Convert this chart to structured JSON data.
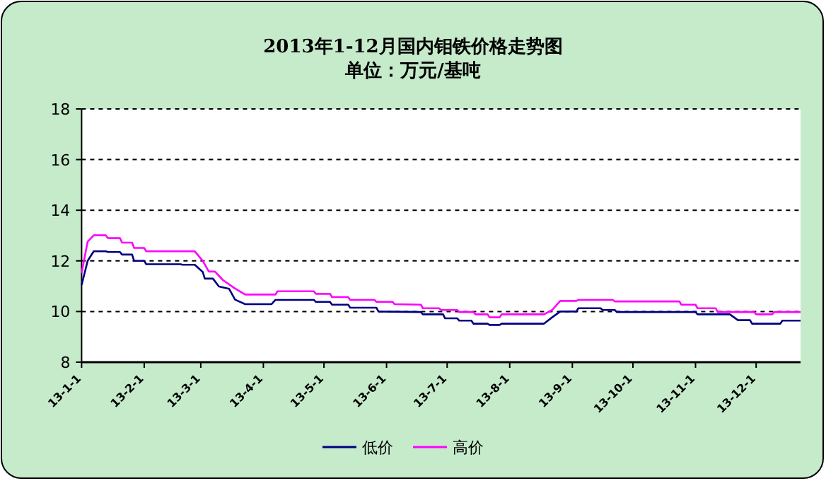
{
  "chart_data": {
    "type": "line",
    "title": "2013年1-12月国内钼铁价格走势图",
    "subtitle": "单位：万元/基吨",
    "grid": "y",
    "legend": "bottom",
    "marker": "none",
    "xlim": [
      "2013-01-01",
      "2013-12-23"
    ],
    "xticks": [
      {
        "value": "2013-01-01",
        "label": "13-1-1"
      },
      {
        "value": "2013-02-01",
        "label": "13-2-1"
      },
      {
        "value": "2013-03-01",
        "label": "13-3-1"
      },
      {
        "value": "2013-04-01",
        "label": "13-4-1"
      },
      {
        "value": "2013-05-01",
        "label": "13-5-1"
      },
      {
        "value": "2013-06-01",
        "label": "13-6-1"
      },
      {
        "value": "2013-07-01",
        "label": "13-7-1"
      },
      {
        "value": "2013-08-01",
        "label": "13-8-1"
      },
      {
        "value": "2013-09-01",
        "label": "13-9-1"
      },
      {
        "value": "2013-10-01",
        "label": "13-10-1"
      },
      {
        "value": "2013-11-01",
        "label": "13-11-1"
      },
      {
        "value": "2013-12-01",
        "label": "13-12-1"
      }
    ],
    "ylim": [
      8,
      18
    ],
    "yticks": [
      8,
      10,
      12,
      14,
      16,
      18
    ],
    "series": [
      {
        "name": "低价",
        "color": "#000080",
        "x": [
          "2013-01-01",
          "2013-01-04",
          "2013-01-07",
          "2013-01-13",
          "2013-01-14",
          "2013-01-20",
          "2013-01-21",
          "2013-01-26",
          "2013-01-27",
          "2013-02-01",
          "2013-02-02",
          "2013-02-19",
          "2013-02-20",
          "2013-02-26",
          "2013-03-02",
          "2013-03-03",
          "2013-03-07",
          "2013-03-10",
          "2013-03-15",
          "2013-03-18",
          "2013-03-23",
          "2013-04-05",
          "2013-04-07",
          "2013-04-26",
          "2013-04-27",
          "2013-05-04",
          "2013-05-05",
          "2013-05-13",
          "2013-05-14",
          "2013-05-27",
          "2013-05-28",
          "2013-06-18",
          "2013-06-19",
          "2013-06-29",
          "2013-06-30",
          "2013-07-06",
          "2013-07-07",
          "2013-07-13",
          "2013-07-14",
          "2013-07-21",
          "2013-07-22",
          "2013-07-27",
          "2013-07-28",
          "2013-08-18",
          "2013-08-22",
          "2013-08-26",
          "2013-09-03",
          "2013-09-04",
          "2013-09-15",
          "2013-09-16",
          "2013-09-22",
          "2013-09-23",
          "2013-11-01",
          "2013-11-02",
          "2013-11-18",
          "2013-11-22",
          "2013-11-28",
          "2013-11-29",
          "2013-12-13",
          "2013-12-14",
          "2013-12-23"
        ],
        "values": [
          11.05,
          12.0,
          12.38,
          12.38,
          12.35,
          12.35,
          12.25,
          12.25,
          12.0,
          12.0,
          11.87,
          11.87,
          11.85,
          11.85,
          11.56,
          11.3,
          11.3,
          10.99,
          10.9,
          10.47,
          10.29,
          10.29,
          10.46,
          10.46,
          10.38,
          10.38,
          10.27,
          10.27,
          10.15,
          10.15,
          10.0,
          9.98,
          9.89,
          9.89,
          9.73,
          9.73,
          9.64,
          9.64,
          9.52,
          9.52,
          9.47,
          9.47,
          9.52,
          9.52,
          9.77,
          10.0,
          10.0,
          10.13,
          10.13,
          10.06,
          10.06,
          9.98,
          9.98,
          9.89,
          9.89,
          9.66,
          9.66,
          9.52,
          9.52,
          9.64,
          9.64
        ]
      },
      {
        "name": "高价",
        "color": "#ff00ff",
        "x": [
          "2013-01-01",
          "2013-01-04",
          "2013-01-07",
          "2013-01-13",
          "2013-01-14",
          "2013-01-20",
          "2013-01-21",
          "2013-01-26",
          "2013-01-27",
          "2013-02-01",
          "2013-02-02",
          "2013-02-26",
          "2013-03-02",
          "2013-03-05",
          "2013-03-08",
          "2013-03-12",
          "2013-03-18",
          "2013-03-23",
          "2013-04-07",
          "2013-04-08",
          "2013-04-26",
          "2013-04-27",
          "2013-05-04",
          "2013-05-05",
          "2013-05-13",
          "2013-05-14",
          "2013-05-26",
          "2013-05-27",
          "2013-06-04",
          "2013-06-05",
          "2013-06-18",
          "2013-06-19",
          "2013-06-27",
          "2013-06-28",
          "2013-07-06",
          "2013-07-07",
          "2013-07-14",
          "2013-07-15",
          "2013-07-21",
          "2013-07-22",
          "2013-07-27",
          "2013-07-28",
          "2013-08-18",
          "2013-08-22",
          "2013-08-26",
          "2013-09-03",
          "2013-09-04",
          "2013-09-21",
          "2013-09-22",
          "2013-10-24",
          "2013-10-25",
          "2013-11-01",
          "2013-11-02",
          "2013-11-11",
          "2013-11-12",
          "2013-11-30",
          "2013-12-01",
          "2013-12-09",
          "2013-12-10",
          "2013-12-23"
        ],
        "values": [
          11.52,
          12.76,
          13.01,
          13.01,
          12.9,
          12.9,
          12.72,
          12.72,
          12.51,
          12.51,
          12.38,
          12.38,
          12.0,
          11.58,
          11.58,
          11.24,
          10.91,
          10.67,
          10.67,
          10.8,
          10.8,
          10.7,
          10.7,
          10.57,
          10.57,
          10.46,
          10.46,
          10.38,
          10.38,
          10.29,
          10.27,
          10.13,
          10.13,
          10.06,
          10.06,
          9.98,
          9.98,
          9.89,
          9.89,
          9.77,
          9.77,
          9.89,
          9.89,
          10.06,
          10.42,
          10.42,
          10.46,
          10.46,
          10.4,
          10.4,
          10.27,
          10.27,
          10.13,
          10.13,
          9.98,
          9.98,
          9.89,
          9.89,
          9.98,
          9.98
        ]
      }
    ]
  }
}
